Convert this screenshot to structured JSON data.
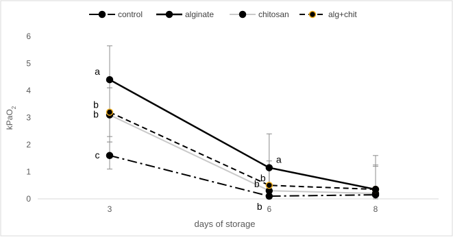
{
  "chart_data": {
    "type": "line",
    "categories": [
      "3",
      "6",
      "8"
    ],
    "x_positions": [
      3,
      6,
      8
    ],
    "ylabel_main": "kPaO",
    "ylabel_sub": "2",
    "xlabel": "days of storage",
    "ylim": [
      0,
      6
    ],
    "yticks": [
      "0",
      "1",
      "2",
      "3",
      "4",
      "5",
      "6"
    ],
    "grid": false,
    "legend_position": "top",
    "series": [
      {
        "name": "control",
        "values": [
          1.6,
          0.1,
          0.15
        ],
        "errors": [
          0.5,
          0,
          0
        ],
        "letters": [
          "c",
          "b",
          ""
        ],
        "line_color": "#000000",
        "dash": "14 5 3 5",
        "stroke_width": 2,
        "marker_fill": "#000000",
        "marker_stroke": "#000000"
      },
      {
        "name": "alginate",
        "values": [
          4.4,
          1.15,
          0.35
        ],
        "errors": [
          1.25,
          1.25,
          1.25
        ],
        "letters": [
          "a",
          "a",
          ""
        ],
        "line_color": "#000000",
        "dash": "",
        "stroke_width": 2.5,
        "marker_fill": "#000000",
        "marker_stroke": "#000000"
      },
      {
        "name": "chitosan",
        "values": [
          3.1,
          0.3,
          0.2
        ],
        "errors": [
          1.0,
          0,
          1.0
        ],
        "letters": [
          "b",
          "b",
          ""
        ],
        "line_color": "#c9c9c9",
        "dash": "",
        "stroke_width": 2,
        "marker_fill": "#000000",
        "marker_stroke": "#000000"
      },
      {
        "name": "alg+chit",
        "values": [
          3.2,
          0.5,
          0.35
        ],
        "errors": [
          0.9,
          0.9,
          0.9
        ],
        "letters": [
          "b",
          "b",
          ""
        ],
        "line_color": "#000000",
        "dash": "8 5",
        "stroke_width": 2,
        "marker_fill": "#000000",
        "marker_stroke": "#f2b01e"
      }
    ]
  }
}
